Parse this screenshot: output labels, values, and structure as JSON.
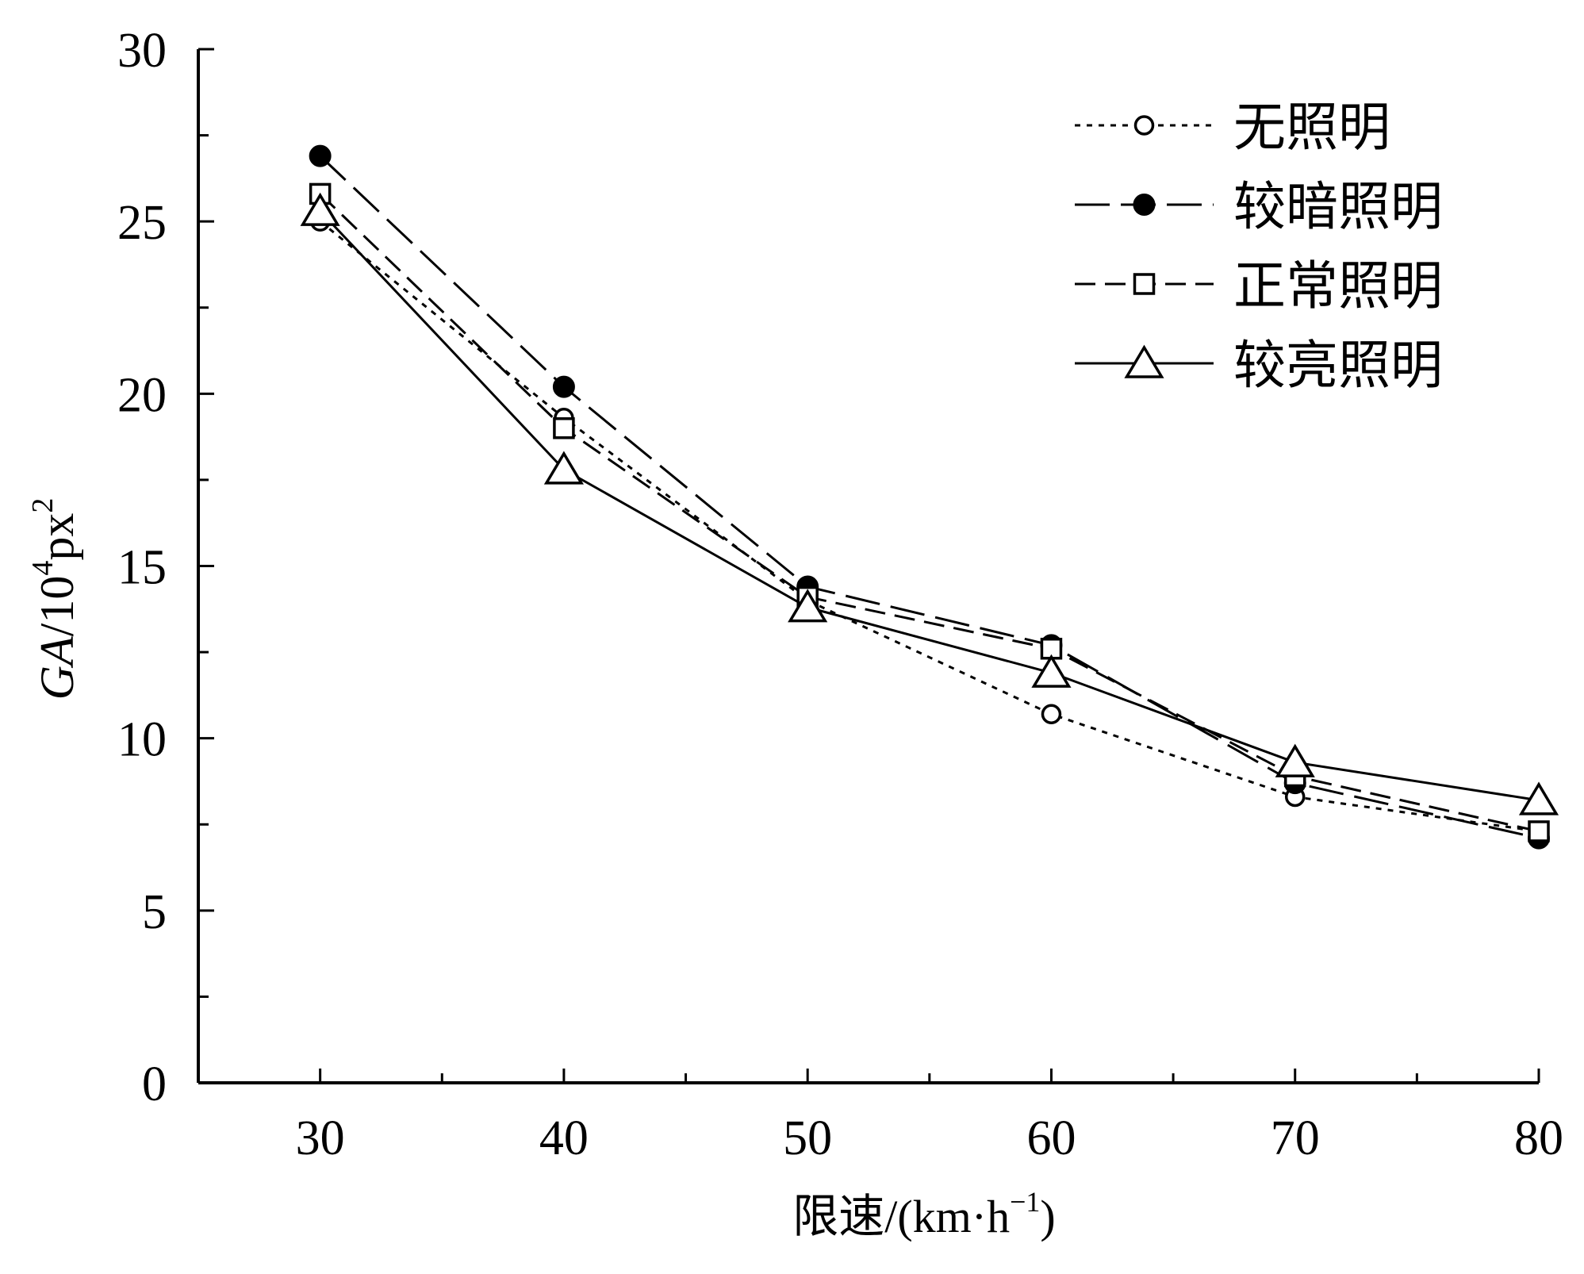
{
  "chart_data": {
    "type": "line",
    "title": "",
    "xlabel": "限速/(km·h",
    "xlabel_sup": "−1",
    "xlabel_tail": ")",
    "ylabel_italic": "GA",
    "ylabel_mid": "/10",
    "ylabel_sup1": "4",
    "ylabel_unit": "px",
    "ylabel_sup2": "2",
    "xlim": [
      25,
      80
    ],
    "ylim": [
      0,
      30
    ],
    "x_ticks": [
      30,
      40,
      50,
      60,
      70,
      80
    ],
    "x_minor_ticks": [
      35,
      45,
      55,
      65,
      75
    ],
    "y_ticks": [
      0,
      5,
      10,
      15,
      20,
      25,
      30
    ],
    "y_minor_ticks": [
      2.5,
      7.5,
      12.5,
      17.5,
      22.5,
      27.5
    ],
    "x_tick_labels": [
      "30",
      "40",
      "50",
      "60",
      "70",
      "80"
    ],
    "y_tick_labels": [
      "0",
      "5",
      "10",
      "15",
      "20",
      "25",
      "30"
    ],
    "grid": false,
    "legend_position": "top-right",
    "x": [
      30,
      40,
      50,
      60,
      70,
      80
    ],
    "series": [
      {
        "name": "无照明",
        "values": [
          25.0,
          19.3,
          14.0,
          10.7,
          8.3,
          7.3
        ],
        "marker": "circle-open",
        "dash": "dotted",
        "color": "#000000"
      },
      {
        "name": "较暗照明",
        "values": [
          26.9,
          20.2,
          14.4,
          12.7,
          8.7,
          7.1
        ],
        "marker": "circle-filled",
        "dash": "long-dash",
        "color": "#000000"
      },
      {
        "name": "正常照明",
        "values": [
          25.8,
          19.0,
          14.1,
          12.6,
          8.9,
          7.3
        ],
        "marker": "square-open",
        "dash": "dash",
        "color": "#000000"
      },
      {
        "name": "较亮照明",
        "values": [
          25.3,
          17.8,
          13.8,
          11.9,
          9.3,
          8.2
        ],
        "marker": "triangle-open",
        "dash": "solid",
        "color": "#000000"
      }
    ]
  }
}
